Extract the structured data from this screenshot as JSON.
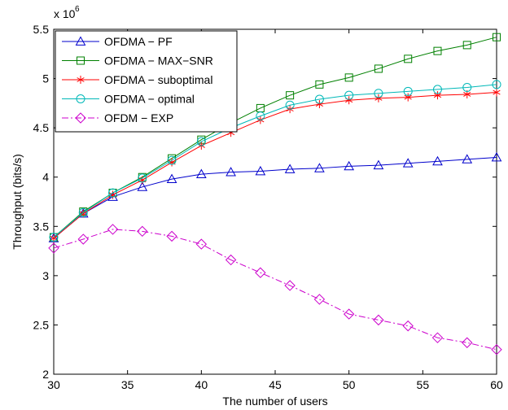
{
  "chart_data": {
    "type": "line",
    "xlabel": "The number of users",
    "ylabel": "Throughput (bits/s)",
    "y_multiplier": "x 10",
    "y_exponent": "6",
    "xlim": [
      30,
      60
    ],
    "ylim": [
      2,
      5.5
    ],
    "xticks": [
      30,
      35,
      40,
      45,
      50,
      55,
      60
    ],
    "yticks": [
      2,
      2.5,
      3,
      3.5,
      4,
      4.5,
      5,
      5.5
    ],
    "grid": false,
    "legend_position": "top-left",
    "x": [
      30,
      32,
      34,
      36,
      38,
      40,
      42,
      44,
      46,
      48,
      50,
      52,
      54,
      56,
      58,
      60
    ],
    "series": [
      {
        "name": "OFDMA − PF",
        "color": "#0000cc",
        "marker": "triangle",
        "line": "solid",
        "values": [
          3.38,
          3.63,
          3.8,
          3.9,
          3.98,
          4.03,
          4.05,
          4.06,
          4.08,
          4.09,
          4.11,
          4.12,
          4.14,
          4.16,
          4.18,
          4.2
        ]
      },
      {
        "name": "OFDMA − MAX−SNR",
        "color": "#008000",
        "marker": "square",
        "line": "solid",
        "values": [
          3.39,
          3.65,
          3.84,
          4.0,
          4.19,
          4.38,
          4.55,
          4.7,
          4.83,
          4.94,
          5.01,
          5.1,
          5.2,
          5.28,
          5.34,
          5.42
        ]
      },
      {
        "name": "OFDMA − suboptimal",
        "color": "#ff0000",
        "marker": "asterisk",
        "line": "solid",
        "values": [
          3.38,
          3.63,
          3.82,
          3.97,
          4.15,
          4.32,
          4.45,
          4.58,
          4.69,
          4.74,
          4.78,
          4.8,
          4.81,
          4.83,
          4.84,
          4.86
        ]
      },
      {
        "name": "OFDMA − optimal",
        "color": "#00b8b8",
        "marker": "circle",
        "line": "solid",
        "values": [
          3.39,
          3.64,
          3.84,
          3.99,
          4.17,
          4.36,
          4.5,
          4.62,
          4.73,
          4.79,
          4.83,
          4.85,
          4.87,
          4.89,
          4.91,
          4.94
        ]
      },
      {
        "name": "OFDM − EXP",
        "color": "#cc00cc",
        "marker": "diamond",
        "line": "dashdot",
        "values": [
          3.28,
          3.37,
          3.47,
          3.45,
          3.4,
          3.32,
          3.16,
          3.03,
          2.9,
          2.76,
          2.61,
          2.55,
          2.49,
          2.37,
          2.32,
          2.25
        ]
      }
    ]
  }
}
